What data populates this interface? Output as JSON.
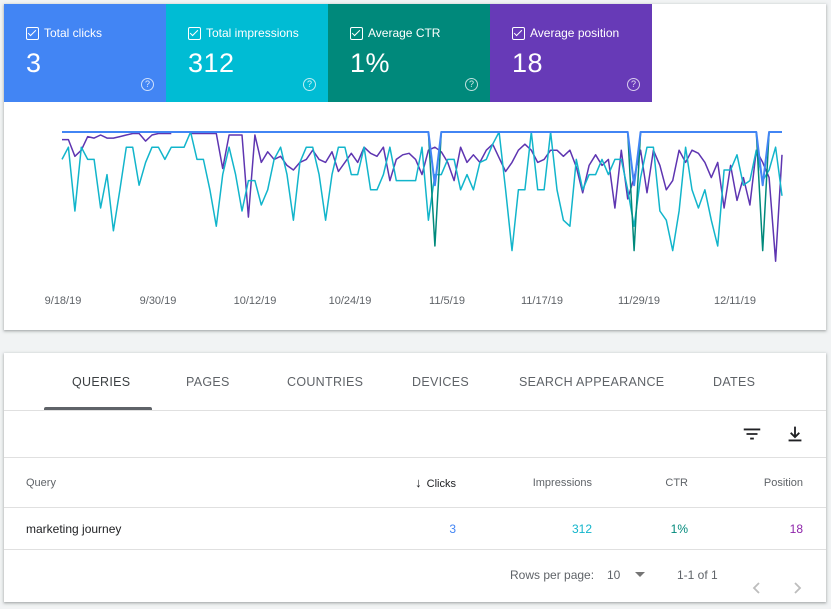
{
  "metrics": [
    {
      "label": "Total clicks",
      "value": "3",
      "color": "#4285f4"
    },
    {
      "label": "Total impressions",
      "value": "312",
      "color": "#00bcd4"
    },
    {
      "label": "Average CTR",
      "value": "1%",
      "color": "#00897b"
    },
    {
      "label": "Average position",
      "value": "18",
      "color": "#673ab7"
    }
  ],
  "help_glyph": "?",
  "chart_data": {
    "type": "line",
    "x_ticks": [
      "9/18/19",
      "9/30/19",
      "10/12/19",
      "10/24/19",
      "11/5/19",
      "11/17/19",
      "11/29/19",
      "12/11/19"
    ],
    "series": [
      {
        "name": "Average position",
        "color": "#5e35b1",
        "values": [
          0.05,
          0.05,
          0.16,
          0.12,
          0.03,
          0.04,
          0.02,
          0.04,
          0.04,
          0.03,
          0.02,
          0.01,
          0.01,
          0.06,
          0.02,
          0.01,
          0.01,
          0.01,
          null,
          null,
          0.01,
          0.01,
          0.01,
          0.01,
          0.01,
          0.24,
          0.02,
          0.02,
          0.02,
          0.56,
          0.02,
          0.2,
          0.13,
          0.18,
          0.16,
          0.22,
          0.25,
          0.2,
          0.18,
          0.12,
          0.18,
          0.2,
          0.13,
          0.26,
          0.2,
          0.14,
          0.2,
          0.1,
          0.14,
          0.16,
          0.1,
          0.32,
          0.18,
          0.15,
          0.14,
          0.18,
          0.28,
          0.12,
          0.1,
          0.13,
          0.2,
          0.32,
          0.1,
          0.2,
          0.15,
          0.2,
          0.12,
          0.08,
          0.17,
          0.26,
          0.2,
          0.12,
          0.08,
          0.12,
          0.2,
          0.18,
          0.12,
          0.12,
          0.16,
          0.12,
          0.23,
          0.4,
          0.22,
          0.15,
          0.22,
          0.18,
          0.5,
          0.12,
          0.44,
          0.3,
          0.12,
          0.4,
          0.12,
          0.22,
          0.38,
          0.32,
          0.12,
          0.2,
          0.12,
          0.14,
          0.2,
          0.3,
          0.2,
          0.5,
          0.22,
          0.45,
          0.3,
          0.48,
          0.12,
          0.2,
          0.3,
          0.85,
          0.15
        ]
      },
      {
        "name": "Total impressions",
        "color": "#12b5cb",
        "values": [
          0.18,
          0.1,
          0.52,
          0.1,
          0.18,
          0.18,
          0.5,
          0.28,
          0.65,
          0.38,
          0.1,
          0.1,
          0.35,
          0.2,
          0.1,
          0.1,
          0.18,
          0.1,
          0.1,
          0.1,
          0.0,
          0.18,
          0.18,
          0.38,
          0.62,
          0.28,
          0.1,
          0.28,
          0.52,
          0.32,
          0.32,
          0.48,
          0.38,
          0.18,
          0.1,
          0.28,
          0.58,
          0.2,
          0.1,
          0.1,
          0.28,
          0.58,
          0.28,
          0.1,
          0.1,
          0.28,
          0.28,
          0.1,
          0.38,
          0.38,
          0.28,
          0.1,
          0.32,
          0.32,
          0.32,
          0.32,
          0.1,
          0.58,
          0.28,
          0.28,
          0.18,
          0.18,
          0.38,
          0.28,
          0.38,
          0.2,
          0.18,
          0.08,
          0.0,
          0.38,
          0.78,
          0.38,
          0.38,
          0.0,
          0.38,
          0.38,
          0.0,
          0.38,
          0.58,
          0.62,
          0.18,
          0.38,
          0.28,
          0.28,
          0.18,
          0.28,
          0.18,
          0.18,
          0.38,
          0.62,
          0.3,
          0.1,
          0.1,
          0.52,
          0.58,
          0.78,
          0.52,
          0.1,
          0.38,
          0.5,
          0.38,
          0.58,
          0.75,
          0.25,
          0.25,
          0.15,
          0.35,
          0.32,
          0.12,
          0.32,
          0.25,
          0.1,
          0.42
        ]
      },
      {
        "name": "Average CTR",
        "color": "#00897b",
        "values": [
          0,
          0,
          0,
          0,
          0,
          0,
          0,
          0,
          0,
          0,
          0,
          0,
          0,
          0,
          0,
          0,
          0,
          0,
          0,
          0,
          0,
          0,
          0,
          0,
          0,
          0,
          0,
          0,
          0,
          0,
          0,
          0,
          0,
          0,
          0,
          0,
          0,
          0,
          0,
          0,
          0,
          0,
          0,
          0,
          0,
          0,
          0,
          0,
          0,
          0,
          0,
          0,
          0,
          0,
          0,
          0,
          0,
          0,
          0.75,
          0,
          0,
          0,
          0,
          0,
          0,
          0,
          0,
          0,
          0,
          0,
          0,
          0,
          0,
          0,
          0,
          0,
          0,
          0,
          0,
          0,
          0,
          0,
          0,
          0,
          0,
          0,
          0,
          0,
          0,
          0.78,
          0,
          0,
          0,
          0,
          0,
          0,
          0,
          0,
          0,
          0,
          0,
          0,
          0,
          0,
          0,
          0,
          0,
          0,
          0,
          0.78,
          0,
          0,
          0
        ]
      },
      {
        "name": "Total clicks",
        "color": "#4285f4",
        "values": [
          0,
          0,
          0,
          0,
          0,
          0,
          0,
          0,
          0,
          0,
          0,
          0,
          0,
          0,
          0,
          0,
          0,
          0,
          0,
          0,
          0,
          0,
          0,
          0,
          0,
          0,
          0,
          0,
          0,
          0,
          0,
          0,
          0,
          0,
          0,
          0,
          0,
          0,
          0,
          0,
          0,
          0,
          0,
          0,
          0,
          0,
          0,
          0,
          0,
          0,
          0,
          0,
          0,
          0,
          0,
          0,
          0,
          0,
          0.35,
          0,
          0,
          0,
          0,
          0,
          0,
          0,
          0,
          0,
          0,
          0,
          0,
          0,
          0,
          0,
          0,
          0,
          0,
          0,
          0,
          0,
          0,
          0,
          0,
          0,
          0,
          0,
          0,
          0,
          0,
          0.35,
          0,
          0,
          0,
          0,
          0,
          0,
          0,
          0,
          0,
          0,
          0,
          0,
          0,
          0,
          0,
          0,
          0,
          0,
          0,
          0.35,
          0,
          0,
          0
        ]
      }
    ]
  },
  "tabs": [
    "QUERIES",
    "PAGES",
    "COUNTRIES",
    "DEVICES",
    "SEARCH APPEARANCE",
    "DATES"
  ],
  "table": {
    "columns": {
      "query": "Query",
      "clicks": "Clicks",
      "impressions": "Impressions",
      "ctr": "CTR",
      "position": "Position"
    },
    "sort_arrow": "↓",
    "rows": [
      {
        "query": "marketing journey",
        "clicks": "3",
        "impressions": "312",
        "ctr": "1%",
        "position": "18"
      }
    ]
  },
  "pager": {
    "rows_label": "Rows per page:",
    "rows_value": "10",
    "range": "1-1 of 1"
  }
}
